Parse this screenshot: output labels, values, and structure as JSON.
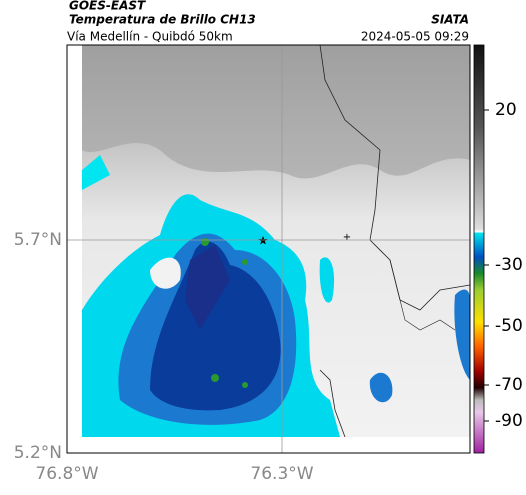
{
  "header": {
    "satellite": "GOES-EAST",
    "product": "Temperatura de Brillo CH13",
    "source": "SIATA",
    "route": "Vía Medellín - Quibdó 50km",
    "datetime": "2024-05-05 09:29"
  },
  "axes": {
    "latitude_labels": [
      "5.7°N",
      "5.2°N"
    ],
    "longitude_labels": [
      "76.8°W",
      "76.3°W"
    ]
  },
  "colorbar": {
    "ticks": [
      20,
      -30,
      -50,
      -70,
      -90
    ]
  }
}
